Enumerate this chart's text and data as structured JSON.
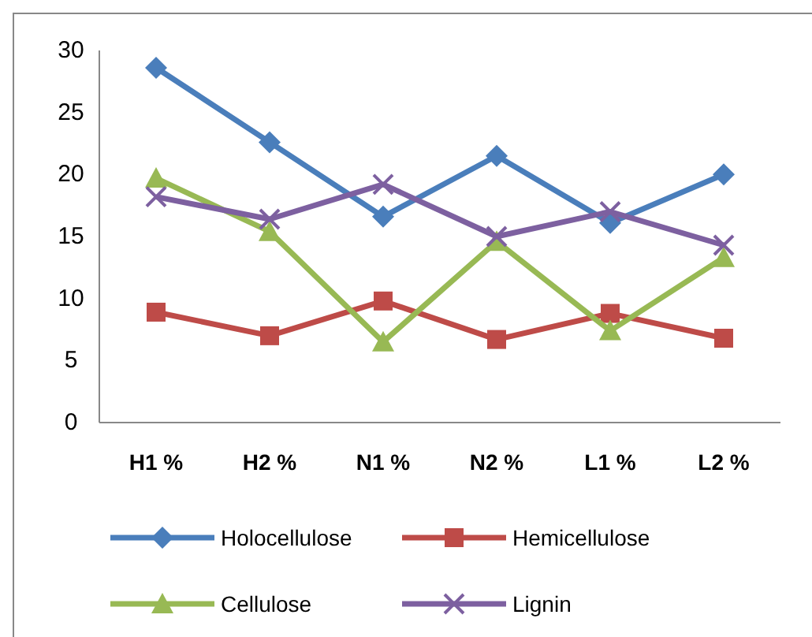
{
  "chart_data": {
    "type": "line",
    "categories": [
      "H1 %",
      "H2 %",
      "N1 %",
      "N2 %",
      "L1 %",
      "L2 %"
    ],
    "series": [
      {
        "name": "Holocellulose",
        "color": "#4a7ebb",
        "marker": "diamond",
        "values": [
          28.6,
          22.6,
          16.6,
          21.5,
          16.1,
          20.0
        ]
      },
      {
        "name": "Hemicellulose",
        "color": "#be4b48",
        "marker": "square",
        "values": [
          8.9,
          7.0,
          9.8,
          6.7,
          8.8,
          6.8
        ]
      },
      {
        "name": "Cellulose",
        "color": "#98b954",
        "marker": "triangle",
        "values": [
          19.7,
          15.4,
          6.5,
          14.6,
          7.4,
          13.3
        ]
      },
      {
        "name": "Lignin",
        "color": "#7d60a0",
        "marker": "cross",
        "values": [
          18.2,
          16.4,
          19.2,
          15.0,
          17.0,
          14.3
        ]
      }
    ],
    "ylim": [
      0,
      30
    ],
    "yticks": [
      0,
      5,
      10,
      15,
      20,
      25,
      30
    ],
    "grid": false,
    "legend": "bottom",
    "line_style": "solid"
  }
}
